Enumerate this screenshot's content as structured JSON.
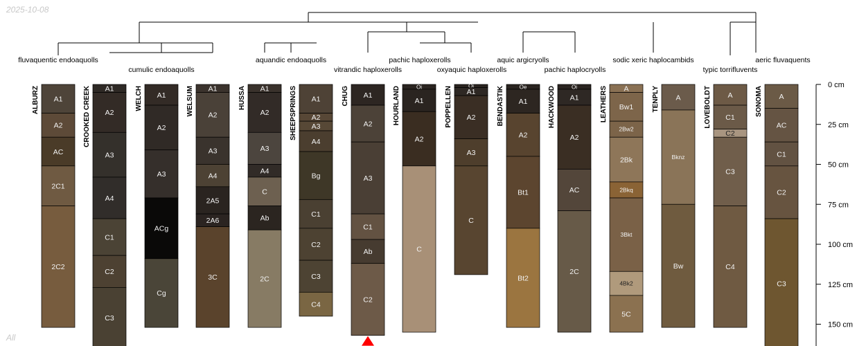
{
  "date_stamp": "2025-10-08",
  "footer_tag": "All",
  "depth_axis": {
    "unit": "cm",
    "ticks": [
      {
        "value": 0,
        "label": "0 cm"
      },
      {
        "value": 25,
        "label": "25 cm"
      },
      {
        "value": 50,
        "label": "50 cm"
      },
      {
        "value": 75,
        "label": "75 cm"
      },
      {
        "value": 100,
        "label": "100 cm"
      },
      {
        "value": 125,
        "label": "125 cm"
      },
      {
        "value": 150,
        "label": "150 cm"
      }
    ]
  },
  "subgroups": [
    "fluvaquentic endoaquolls",
    "cumulic endoaquolls",
    "aquandic endoaquolls",
    "vitrandic haploxerolls",
    "pachic haploxerolls",
    "oxyaquic haploxerolls",
    "aquic argicryolls",
    "pachic haplocryolls",
    "sodic xeric haplocambids",
    "typic torrifluvents",
    "aeric fluvaquents"
  ],
  "profiles": [
    {
      "name": "ALBURZ",
      "horizons": [
        {
          "name": "A1",
          "top": 0,
          "bottom": 18,
          "color": "#4e4439"
        },
        {
          "name": "A2",
          "top": 18,
          "bottom": 33,
          "color": "#5d4a38"
        },
        {
          "name": "AC",
          "top": 33,
          "bottom": 51,
          "color": "#4a3b28"
        },
        {
          "name": "2C1",
          "top": 51,
          "bottom": 76,
          "color": "#6f5a42"
        },
        {
          "name": "2C2",
          "top": 76,
          "bottom": 152,
          "color": "#775c3e"
        }
      ]
    },
    {
      "name": "CROOKED CREEK",
      "horizons": [
        {
          "name": "A1",
          "top": 0,
          "bottom": 5,
          "color": "#2e2925"
        },
        {
          "name": "A2",
          "top": 5,
          "bottom": 30,
          "color": "#332b26"
        },
        {
          "name": "A3",
          "top": 30,
          "bottom": 58,
          "color": "#34302b"
        },
        {
          "name": "A4",
          "top": 58,
          "bottom": 84,
          "color": "#312d2a"
        },
        {
          "name": "C1",
          "top": 84,
          "bottom": 107,
          "color": "#4b4335"
        },
        {
          "name": "C2",
          "top": 107,
          "bottom": 127,
          "color": "#4d4132"
        },
        {
          "name": "C3",
          "top": 127,
          "bottom": 165,
          "color": "#4a4133"
        }
      ]
    },
    {
      "name": "WELCH",
      "horizons": [
        {
          "name": "A1",
          "top": 0,
          "bottom": 13,
          "color": "#332b26"
        },
        {
          "name": "A2",
          "top": 13,
          "bottom": 41,
          "color": "#302a26"
        },
        {
          "name": "A3",
          "top": 41,
          "bottom": 71,
          "color": "#352f2b"
        },
        {
          "name": "ACg",
          "top": 71,
          "bottom": 109,
          "color": "#0a0908"
        },
        {
          "name": "Cg",
          "top": 109,
          "bottom": 152,
          "color": "#4a4538"
        }
      ]
    },
    {
      "name": "WELSUM",
      "horizons": [
        {
          "name": "A1",
          "top": 0,
          "bottom": 5,
          "color": "#3b332d"
        },
        {
          "name": "A2",
          "top": 5,
          "bottom": 33,
          "color": "#4a4138"
        },
        {
          "name": "A3",
          "top": 33,
          "bottom": 50,
          "color": "#3a332d"
        },
        {
          "name": "A4",
          "top": 50,
          "bottom": 64,
          "color": "#4d4234"
        },
        {
          "name": "2A5",
          "top": 64,
          "bottom": 81,
          "color": "#2a2420"
        },
        {
          "name": "2A6",
          "top": 81,
          "bottom": 89,
          "color": "#2b2421"
        },
        {
          "name": "3C",
          "top": 89,
          "bottom": 152,
          "color": "#5a432c"
        }
      ]
    },
    {
      "name": "HUSSA",
      "horizons": [
        {
          "name": "A1",
          "top": 0,
          "bottom": 5,
          "color": "#3a322c"
        },
        {
          "name": "A2",
          "top": 5,
          "bottom": 30,
          "color": "#322b27"
        },
        {
          "name": "A3",
          "top": 30,
          "bottom": 50,
          "color": "#4c453e"
        },
        {
          "name": "A4",
          "top": 50,
          "bottom": 58,
          "color": "#312b27"
        },
        {
          "name": "C",
          "top": 58,
          "bottom": 76,
          "color": "#6d6050"
        },
        {
          "name": "Ab",
          "top": 76,
          "bottom": 91,
          "color": "#2b2520"
        },
        {
          "name": "2C",
          "top": 91,
          "bottom": 152,
          "color": "#877b64"
        }
      ]
    },
    {
      "name": "SHEEPSPRINGS",
      "horizons": [
        {
          "name": "A1",
          "top": 0,
          "bottom": 18,
          "color": "#4e4236"
        },
        {
          "name": "A2",
          "top": 18,
          "bottom": 23,
          "color": "#574736"
        },
        {
          "name": "A3",
          "top": 23,
          "bottom": 29,
          "color": "#574836"
        },
        {
          "name": "A4",
          "top": 29,
          "bottom": 42,
          "color": "#4b3e2f"
        },
        {
          "name": "Bg",
          "top": 42,
          "bottom": 72,
          "color": "#3e3727"
        },
        {
          "name": "C1",
          "top": 72,
          "bottom": 90,
          "color": "#4a4032"
        },
        {
          "name": "C2",
          "top": 90,
          "bottom": 110,
          "color": "#4d4232"
        },
        {
          "name": "C3",
          "top": 110,
          "bottom": 130,
          "color": "#4d4333"
        },
        {
          "name": "C4",
          "top": 130,
          "bottom": 145,
          "color": "#7a6643"
        }
      ]
    },
    {
      "name": "CHUG",
      "truncated": true,
      "horizons": [
        {
          "name": "A1",
          "top": 0,
          "bottom": 13,
          "color": "#2d2622"
        },
        {
          "name": "A2",
          "top": 13,
          "bottom": 36,
          "color": "#4c4238"
        },
        {
          "name": "A3",
          "top": 36,
          "bottom": 81,
          "color": "#4a3f35"
        },
        {
          "name": "C1",
          "top": 81,
          "bottom": 97,
          "color": "#635242"
        },
        {
          "name": "Ab",
          "top": 97,
          "bottom": 112,
          "color": "#463b30"
        },
        {
          "name": "C2",
          "top": 112,
          "bottom": 157,
          "color": "#6d5a48"
        }
      ]
    },
    {
      "name": "HOURLAND",
      "horizons": [
        {
          "name": "Oi",
          "top": 0,
          "bottom": 3,
          "color": "#2a2420"
        },
        {
          "name": "A1",
          "top": 3,
          "bottom": 17,
          "color": "#2a2420"
        },
        {
          "name": "A2",
          "top": 17,
          "bottom": 51,
          "color": "#3a2d21"
        },
        {
          "name": "C",
          "top": 51,
          "bottom": 155,
          "color": "#a89077"
        }
      ]
    },
    {
      "name": "POPPELLEN",
      "horizons": [
        {
          "name": "Oi",
          "top": 0,
          "bottom": 2,
          "color": "#2a2420"
        },
        {
          "name": "A1",
          "top": 2,
          "bottom": 7,
          "color": "#2e2824"
        },
        {
          "name": "A2",
          "top": 7,
          "bottom": 34,
          "color": "#3a2e24"
        },
        {
          "name": "A3",
          "top": 34,
          "bottom": 51,
          "color": "#4e3e2c"
        },
        {
          "name": "C",
          "top": 51,
          "bottom": 119,
          "color": "#584530"
        }
      ]
    },
    {
      "name": "BENDASTIK",
      "horizons": [
        {
          "name": "Oe",
          "top": 0,
          "bottom": 3,
          "color": "#2a2420"
        },
        {
          "name": "A1",
          "top": 3,
          "bottom": 18,
          "color": "#2d2621"
        },
        {
          "name": "A2",
          "top": 18,
          "bottom": 45,
          "color": "#58442f"
        },
        {
          "name": "Bt1",
          "top": 45,
          "bottom": 90,
          "color": "#5c452f"
        },
        {
          "name": "Bt2",
          "top": 90,
          "bottom": 152,
          "color": "#9b7540"
        }
      ]
    },
    {
      "name": "HACKWOOD",
      "horizons": [
        {
          "name": "Oi",
          "top": 0,
          "bottom": 3,
          "color": "#2a2420"
        },
        {
          "name": "A1",
          "top": 3,
          "bottom": 13,
          "color": "#2e2824"
        },
        {
          "name": "A2",
          "top": 13,
          "bottom": 53,
          "color": "#3a2e23"
        },
        {
          "name": "AC",
          "top": 53,
          "bottom": 79,
          "color": "#53463a"
        },
        {
          "name": "2C",
          "top": 79,
          "bottom": 155,
          "color": "#675a48"
        }
      ]
    },
    {
      "name": "LEATHERS",
      "horizons": [
        {
          "name": "A",
          "top": 0,
          "bottom": 5,
          "color": "#8a7154"
        },
        {
          "name": "Bw1",
          "top": 5,
          "bottom": 23,
          "color": "#7d654a"
        },
        {
          "name": "2Bw2",
          "top": 23,
          "bottom": 33,
          "color": "#7c6449"
        },
        {
          "name": "2Bk",
          "top": 33,
          "bottom": 61,
          "color": "#8e7659"
        },
        {
          "name": "2Bkq",
          "top": 61,
          "bottom": 71,
          "color": "#8a6335"
        },
        {
          "name": "3Bkt",
          "top": 71,
          "bottom": 117,
          "color": "#7a6147"
        },
        {
          "name": "4Bk2",
          "top": 117,
          "bottom": 132,
          "color": "#b09a7c"
        },
        {
          "name": "5C",
          "top": 132,
          "bottom": 155,
          "color": "#8b7150"
        }
      ]
    },
    {
      "name": "TENPLY",
      "horizons": [
        {
          "name": "A",
          "top": 0,
          "bottom": 16,
          "color": "#6b5b4b"
        },
        {
          "name": "Bknz",
          "top": 16,
          "bottom": 75,
          "color": "#8a7458"
        },
        {
          "name": "Bw",
          "top": 75,
          "bottom": 152,
          "color": "#6f5b3f"
        }
      ]
    },
    {
      "name": "LOVEBOLDT",
      "horizons": [
        {
          "name": "A",
          "top": 0,
          "bottom": 13,
          "color": "#6d5a46"
        },
        {
          "name": "C1",
          "top": 13,
          "bottom": 28,
          "color": "#6b5a48"
        },
        {
          "name": "C2",
          "top": 28,
          "bottom": 33,
          "color": "#a89580"
        },
        {
          "name": "C3",
          "top": 33,
          "bottom": 76,
          "color": "#705e4b"
        },
        {
          "name": "C4",
          "top": 76,
          "bottom": 152,
          "color": "#6f5a42"
        }
      ]
    },
    {
      "name": "SONOMA",
      "horizons": [
        {
          "name": "A",
          "top": 0,
          "bottom": 15,
          "color": "#6b5a46"
        },
        {
          "name": "AC",
          "top": 15,
          "bottom": 36,
          "color": "#655443"
        },
        {
          "name": "C1",
          "top": 36,
          "bottom": 51,
          "color": "#625242"
        },
        {
          "name": "C2",
          "top": 51,
          "bottom": 84,
          "color": "#675440"
        },
        {
          "name": "C3",
          "top": 84,
          "bottom": 165,
          "color": "#6e5630"
        }
      ]
    }
  ],
  "colors": {
    "label_light": "#f2f2f2",
    "label_dark": "#222222",
    "dendro_line": "#000000",
    "truncation_marker": "#ff0000",
    "horizon_border": "#000000"
  }
}
